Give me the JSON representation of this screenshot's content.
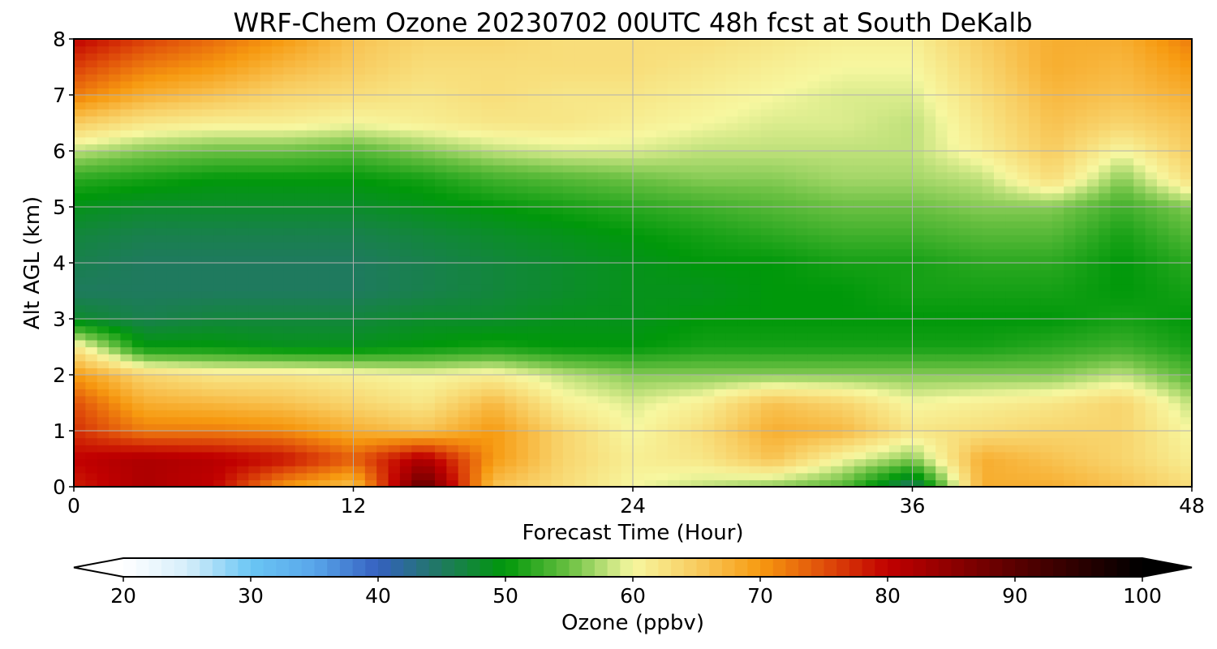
{
  "chart_data": {
    "type": "heatmap",
    "title": "WRF-Chem Ozone  20230702 00UTC 48h fcst at South DeKalb",
    "xlabel": "Forecast Time (Hour)",
    "ylabel": "Alt AGL (km)",
    "xlim": [
      0,
      48
    ],
    "ylim": [
      0,
      8
    ],
    "xticks": [
      0,
      12,
      24,
      36,
      48
    ],
    "yticks": [
      0,
      1,
      2,
      3,
      4,
      5,
      6,
      7,
      8
    ],
    "grid": true,
    "x": [
      0,
      3,
      6,
      9,
      12,
      15,
      18,
      21,
      24,
      27,
      30,
      33,
      36,
      39,
      42,
      45,
      48
    ],
    "y": [
      0,
      0.5,
      1,
      1.5,
      2,
      2.5,
      3,
      3.5,
      4,
      4.5,
      5,
      5.5,
      6,
      6.5,
      7,
      7.5,
      8
    ],
    "z": [
      [
        78,
        82,
        80,
        70,
        66,
        90,
        66,
        63,
        60,
        58,
        56,
        54,
        44,
        68,
        68,
        66,
        63
      ],
      [
        80,
        82,
        81,
        79,
        74,
        82,
        70,
        64,
        61,
        62,
        66,
        60,
        56,
        68,
        66,
        64,
        61
      ],
      [
        77,
        72,
        72,
        71,
        68,
        66,
        70,
        64,
        60,
        63,
        68,
        67,
        62,
        63,
        64,
        64,
        60
      ],
      [
        75,
        68,
        67,
        66,
        64,
        62,
        67,
        61,
        59,
        61,
        66,
        64,
        60,
        61,
        62,
        64,
        58
      ],
      [
        70,
        64,
        62,
        62,
        61,
        60,
        61,
        58,
        56,
        56,
        56,
        56,
        56,
        56,
        56,
        58,
        54
      ],
      [
        62,
        50,
        50,
        49,
        49,
        50,
        51,
        50,
        50,
        51,
        51,
        51,
        51,
        51,
        52,
        53,
        51
      ],
      [
        48,
        46,
        47,
        47,
        47,
        48,
        48,
        49,
        49,
        50,
        50,
        50,
        50,
        50,
        50,
        51,
        50
      ],
      [
        45,
        45,
        45,
        45,
        45,
        46,
        47,
        48,
        49,
        49,
        50,
        50,
        51,
        51,
        51,
        50,
        51
      ],
      [
        46,
        45,
        45,
        45,
        45,
        46,
        47,
        48,
        49,
        50,
        50,
        51,
        51,
        52,
        52,
        50,
        52
      ],
      [
        47,
        46,
        46,
        46,
        46,
        47,
        48,
        49,
        50,
        51,
        52,
        53,
        53,
        54,
        54,
        51,
        54
      ],
      [
        49,
        48,
        48,
        48,
        48,
        49,
        50,
        51,
        52,
        53,
        54,
        55,
        55,
        56,
        56,
        53,
        56
      ],
      [
        52,
        51,
        50,
        50,
        50,
        51,
        53,
        54,
        55,
        56,
        56,
        57,
        57,
        58,
        63,
        56,
        63
      ],
      [
        58,
        56,
        55,
        55,
        54,
        56,
        58,
        59,
        59,
        58,
        58,
        58,
        58,
        61,
        65,
        60,
        65
      ],
      [
        65,
        62,
        61,
        61,
        60,
        61,
        62,
        62,
        61,
        60,
        59,
        59,
        58,
        62,
        66,
        64,
        66
      ],
      [
        72,
        68,
        66,
        64,
        63,
        62,
        63,
        62,
        62,
        61,
        60,
        59,
        59,
        63,
        67,
        66,
        68
      ],
      [
        76,
        72,
        70,
        67,
        65,
        63,
        63,
        63,
        63,
        62,
        61,
        60,
        60,
        64,
        68,
        67,
        70
      ],
      [
        80,
        76,
        73,
        70,
        66,
        64,
        64,
        63,
        63,
        63,
        62,
        61,
        61,
        65,
        68,
        68,
        72
      ]
    ],
    "colorbar": {
      "label": "Ozone  (ppbv)",
      "min": 20,
      "max": 100,
      "ticks": [
        20,
        30,
        40,
        50,
        60,
        70,
        80,
        90,
        100
      ],
      "extend": "both",
      "orientation": "horizontal",
      "colors": [
        [
          20,
          "#ffffff"
        ],
        [
          25,
          "#d6eefa"
        ],
        [
          30,
          "#6ac6f4"
        ],
        [
          35,
          "#59a6ea"
        ],
        [
          40,
          "#3560c0"
        ],
        [
          45,
          "#1f7a5e"
        ],
        [
          50,
          "#00980a"
        ],
        [
          55,
          "#6ac042"
        ],
        [
          60,
          "#f7f7a0"
        ],
        [
          65,
          "#f8cc60"
        ],
        [
          70,
          "#f79a10"
        ],
        [
          75,
          "#e04e0a"
        ],
        [
          80,
          "#c10000"
        ],
        [
          85,
          "#8e0000"
        ],
        [
          90,
          "#5a0000"
        ],
        [
          95,
          "#2c0000"
        ],
        [
          100,
          "#000000"
        ]
      ]
    }
  }
}
